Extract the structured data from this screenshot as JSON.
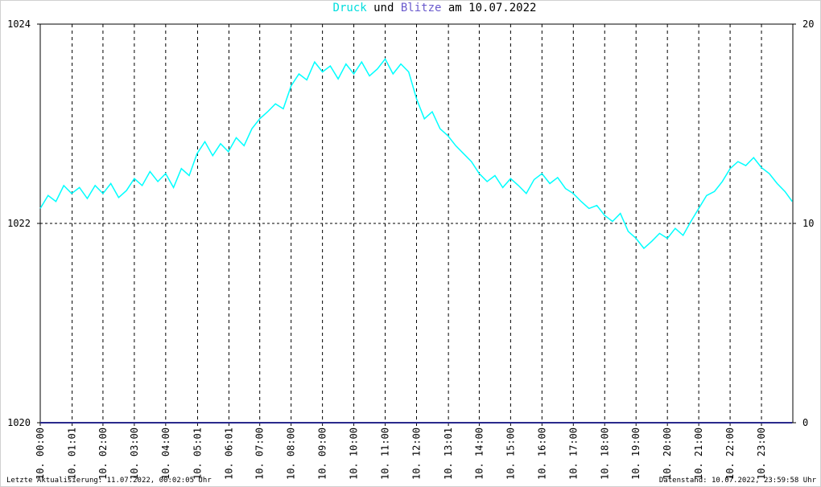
{
  "chart_data": {
    "type": "line",
    "title_connector": "und",
    "title_date": "am 10.07.2022",
    "footer_left": "Letzte Aktualisierung: 11.07.2022, 00:02:05 Uhr",
    "footer_right": "Datenstand: 10.07.2022, 23:59:58 Uhr",
    "xlim": [
      0,
      24
    ],
    "xticks": [
      {
        "value": 0,
        "label": "10. 00:00"
      },
      {
        "value": 1.017,
        "label": "10. 01:01"
      },
      {
        "value": 2,
        "label": "10. 02:00"
      },
      {
        "value": 3,
        "label": "10. 03:00"
      },
      {
        "value": 4,
        "label": "10. 04:00"
      },
      {
        "value": 5.017,
        "label": "10. 05:01"
      },
      {
        "value": 6.017,
        "label": "10. 06:01"
      },
      {
        "value": 7,
        "label": "10. 07:00"
      },
      {
        "value": 8,
        "label": "10. 08:00"
      },
      {
        "value": 9,
        "label": "10. 09:00"
      },
      {
        "value": 10,
        "label": "10. 10:00"
      },
      {
        "value": 11,
        "label": "10. 11:00"
      },
      {
        "value": 12,
        "label": "10. 12:00"
      },
      {
        "value": 13.017,
        "label": "10. 13:01"
      },
      {
        "value": 14,
        "label": "10. 14:00"
      },
      {
        "value": 15,
        "label": "10. 15:00"
      },
      {
        "value": 16,
        "label": "10. 16:00"
      },
      {
        "value": 17,
        "label": "10. 17:00"
      },
      {
        "value": 18,
        "label": "10. 18:00"
      },
      {
        "value": 19,
        "label": "10. 19:00"
      },
      {
        "value": 20,
        "label": "10. 20:00"
      },
      {
        "value": 21,
        "label": "10. 21:00"
      },
      {
        "value": 22,
        "label": "10. 22:00"
      },
      {
        "value": 23,
        "label": "10. 23:00"
      }
    ],
    "ylim": [
      1020,
      1024
    ],
    "yticks": [
      1020,
      1022,
      1024
    ],
    "y2lim": [
      0,
      20
    ],
    "y2ticks": [
      0,
      10,
      20
    ],
    "grid": true,
    "series": [
      {
        "name": "Druck",
        "color": "#00ffff",
        "x": [
          0,
          0.25,
          0.5,
          0.75,
          1,
          1.25,
          1.5,
          1.75,
          2,
          2.25,
          2.5,
          2.75,
          3,
          3.25,
          3.5,
          3.75,
          4,
          4.25,
          4.5,
          4.75,
          5,
          5.25,
          5.5,
          5.75,
          6,
          6.25,
          6.5,
          6.75,
          7,
          7.25,
          7.5,
          7.75,
          8,
          8.25,
          8.5,
          8.75,
          9,
          9.25,
          9.5,
          9.75,
          10,
          10.25,
          10.5,
          10.75,
          11,
          11.25,
          11.5,
          11.75,
          12,
          12.25,
          12.5,
          12.75,
          13,
          13.25,
          13.5,
          13.75,
          14,
          14.25,
          14.5,
          14.75,
          15,
          15.25,
          15.5,
          15.75,
          16,
          16.25,
          16.5,
          16.75,
          17,
          17.25,
          17.5,
          17.75,
          18,
          18.25,
          18.5,
          18.75,
          19,
          19.25,
          19.5,
          19.75,
          20,
          20.25,
          20.5,
          20.75,
          21,
          21.25,
          21.5,
          21.75,
          22,
          22.25,
          22.5,
          22.75,
          23,
          23.25,
          23.5,
          23.75,
          23.98
        ],
        "values": [
          1022.15,
          1022.28,
          1022.22,
          1022.38,
          1022.3,
          1022.36,
          1022.25,
          1022.38,
          1022.3,
          1022.4,
          1022.26,
          1022.33,
          1022.45,
          1022.38,
          1022.52,
          1022.42,
          1022.5,
          1022.36,
          1022.55,
          1022.48,
          1022.7,
          1022.82,
          1022.68,
          1022.8,
          1022.72,
          1022.86,
          1022.78,
          1022.95,
          1023.05,
          1023.12,
          1023.2,
          1023.15,
          1023.38,
          1023.5,
          1023.44,
          1023.62,
          1023.52,
          1023.58,
          1023.45,
          1023.6,
          1023.5,
          1023.62,
          1023.48,
          1023.55,
          1023.65,
          1023.5,
          1023.6,
          1023.52,
          1023.25,
          1023.05,
          1023.12,
          1022.95,
          1022.88,
          1022.78,
          1022.7,
          1022.62,
          1022.5,
          1022.42,
          1022.48,
          1022.36,
          1022.45,
          1022.38,
          1022.3,
          1022.44,
          1022.5,
          1022.4,
          1022.46,
          1022.35,
          1022.3,
          1022.22,
          1022.15,
          1022.18,
          1022.08,
          1022.02,
          1022.1,
          1021.92,
          1021.85,
          1021.75,
          1021.82,
          1021.9,
          1021.85,
          1021.95,
          1021.88,
          1022.02,
          1022.15,
          1022.28,
          1022.32,
          1022.42,
          1022.55,
          1022.62,
          1022.58,
          1022.66,
          1022.56,
          1022.5,
          1022.4,
          1022.32,
          1022.22
        ]
      },
      {
        "name": "Blitze",
        "color": "#2a2a8c",
        "axis": "y2",
        "x": [
          0,
          23.98
        ],
        "values": [
          0,
          0
        ]
      }
    ]
  }
}
